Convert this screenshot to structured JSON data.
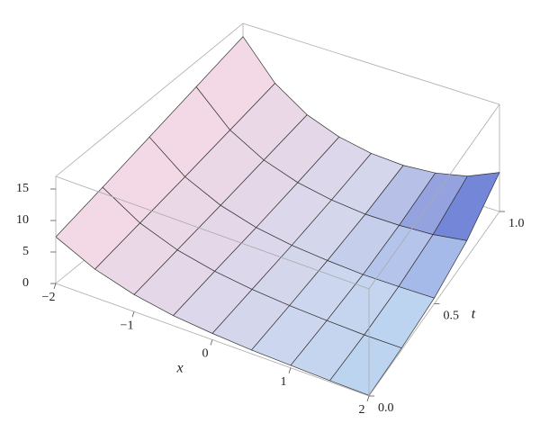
{
  "chart_data": {
    "type": "surface3d",
    "x_label": "x",
    "t_label": "t",
    "x": [
      -2,
      -1.5,
      -1,
      -0.5,
      0,
      0.5,
      1,
      1.5,
      2
    ],
    "t": [
      0,
      0.25,
      0.5,
      0.75,
      1
    ],
    "z": [
      [
        7.4,
        4.5,
        2.7,
        1.6,
        1.0,
        0.6,
        0.4,
        0.2,
        0.1
      ],
      [
        9.2,
        5.6,
        3.4,
        2.1,
        1.3,
        0.8,
        0.5,
        0.3,
        0.3
      ],
      [
        11.1,
        6.7,
        4.1,
        2.5,
        1.6,
        1.1,
        0.8,
        0.8,
        0.9
      ],
      [
        13.0,
        7.9,
        4.9,
        3.1,
        2.1,
        1.6,
        1.6,
        1.9,
        2.7
      ],
      [
        14.9,
        9.1,
        5.7,
        3.8,
        2.8,
        2.5,
        2.9,
        4.0,
        6.2
      ]
    ],
    "xlim": [
      -2,
      2
    ],
    "tlim": [
      0,
      1
    ],
    "zlim": [
      0,
      17
    ],
    "xticks": [
      {
        "value": -2,
        "label": "−2"
      },
      {
        "value": -1,
        "label": "−1"
      },
      0,
      1,
      2
    ],
    "tticks": [
      {
        "value": 0,
        "label": "0.0"
      },
      0.5,
      {
        "value": 1,
        "label": "1.0"
      }
    ],
    "zticks": [
      0,
      5,
      10,
      15
    ],
    "low_color": "#f7d9e4",
    "high_color": "#b9d4f2",
    "edge_color": "#4a58c8"
  }
}
